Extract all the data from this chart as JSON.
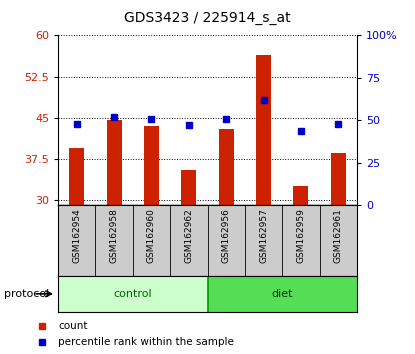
{
  "title": "GDS3423 / 225914_s_at",
  "samples": [
    "GSM162954",
    "GSM162958",
    "GSM162960",
    "GSM162962",
    "GSM162956",
    "GSM162957",
    "GSM162959",
    "GSM162961"
  ],
  "count_values": [
    39.5,
    44.5,
    43.5,
    35.5,
    43.0,
    56.5,
    32.5,
    38.5
  ],
  "percentile_values": [
    48,
    52,
    51,
    47,
    51,
    62,
    44,
    48
  ],
  "bar_color": "#cc2200",
  "dot_color": "#0000cc",
  "ylim_left": [
    29,
    60
  ],
  "ylim_right": [
    0,
    100
  ],
  "yticks_left": [
    30,
    37.5,
    45,
    52.5,
    60
  ],
  "yticks_right": [
    0,
    25,
    50,
    75,
    100
  ],
  "yticklabels_right": [
    "0",
    "25",
    "50",
    "75",
    "100%"
  ],
  "control_color": "#ccffcc",
  "diet_color": "#55dd55",
  "label_bg_color": "#cccccc",
  "protocol_label": "protocol",
  "control_label": "control",
  "diet_label": "diet",
  "legend_count": "count",
  "legend_percentile": "percentile rank within the sample",
  "bar_width": 0.4
}
